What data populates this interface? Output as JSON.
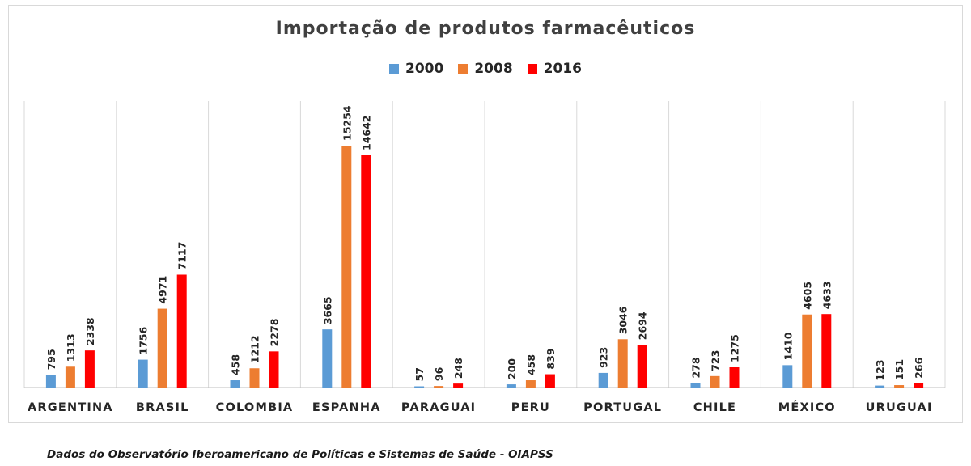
{
  "chart_data": {
    "type": "bar",
    "title": "Importação de produtos farmacêuticos",
    "xlabel": "",
    "ylabel": "",
    "categories": [
      "ARGENTINA",
      "BRASIL",
      "COLOMBIA",
      "ESPANHA",
      "PARAGUAI",
      "PERU",
      "PORTUGAL",
      "CHILE",
      "MÉXICO",
      "URUGUAI"
    ],
    "series": [
      {
        "name": "2000",
        "color": "#5B9BD5",
        "values": [
          795,
          1756,
          458,
          3665,
          57,
          200,
          923,
          278,
          1410,
          123
        ]
      },
      {
        "name": "2008",
        "color": "#ED7D31",
        "values": [
          1313,
          4971,
          1212,
          15254,
          96,
          458,
          3046,
          723,
          4605,
          151
        ]
      },
      {
        "name": "2016",
        "color": "#FF0000",
        "values": [
          2338,
          7117,
          2278,
          14642,
          248,
          839,
          2694,
          1275,
          4633,
          266
        ]
      }
    ],
    "ylim": [
      0,
      16000
    ],
    "grid": "vertical category separators",
    "legend_position": "top",
    "data_labels": true
  },
  "footnote": "Dados do Observatório Iberoamericano de Políticas e Sistemas de Saúde - OIAPSS"
}
